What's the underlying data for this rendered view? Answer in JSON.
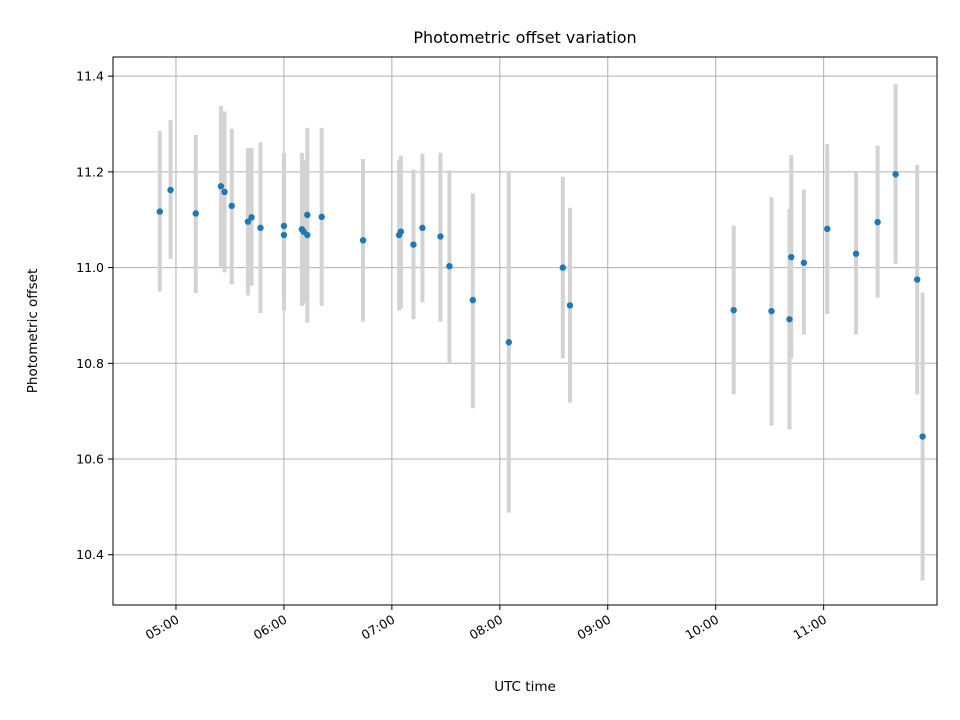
{
  "chart_data": {
    "type": "scatter",
    "title": "Photometric offset variation",
    "xlabel": "UTC time",
    "ylabel": "Photometric offset",
    "xlim": [
      "04:25",
      "12:03"
    ],
    "ylim": [
      10.295,
      11.44
    ],
    "x_ticks": [
      "05:00",
      "06:00",
      "07:00",
      "08:00",
      "09:00",
      "10:00",
      "11:00"
    ],
    "y_ticks": [
      "10.4",
      "10.6",
      "10.8",
      "11.0",
      "11.2",
      "11.4"
    ],
    "grid": true,
    "marker_color": "#1f77b4",
    "errorbar_color": "#d3d3d3",
    "points": [
      {
        "x": "04:51",
        "y": 11.117,
        "lo": 10.95,
        "hi": 11.285
      },
      {
        "x": "04:57",
        "y": 11.162,
        "lo": 11.018,
        "hi": 11.308
      },
      {
        "x": "05:11",
        "y": 11.113,
        "lo": 10.947,
        "hi": 11.277
      },
      {
        "x": "05:25",
        "y": 11.17,
        "lo": 11.002,
        "hi": 11.338
      },
      {
        "x": "05:27",
        "y": 11.158,
        "lo": 10.99,
        "hi": 11.326
      },
      {
        "x": "05:31",
        "y": 11.129,
        "lo": 10.965,
        "hi": 11.29
      },
      {
        "x": "05:40",
        "y": 11.096,
        "lo": 10.942,
        "hi": 11.25
      },
      {
        "x": "05:42",
        "y": 11.105,
        "lo": 10.962,
        "hi": 11.25
      },
      {
        "x": "05:47",
        "y": 11.083,
        "lo": 10.905,
        "hi": 11.262
      },
      {
        "x": "06:00",
        "y": 11.087,
        "lo": 10.935,
        "hi": 11.24
      },
      {
        "x": "06:00",
        "y": 11.068,
        "lo": 10.91,
        "hi": 11.225
      },
      {
        "x": "06:10",
        "y": 11.08,
        "lo": 10.92,
        "hi": 11.24
      },
      {
        "x": "06:11",
        "y": 11.075,
        "lo": 10.925,
        "hi": 11.225
      },
      {
        "x": "06:13",
        "y": 11.11,
        "lo": 10.93,
        "hi": 11.292
      },
      {
        "x": "06:13",
        "y": 11.068,
        "lo": 10.885,
        "hi": 11.25
      },
      {
        "x": "06:21",
        "y": 11.106,
        "lo": 10.92,
        "hi": 11.292
      },
      {
        "x": "06:44",
        "y": 11.057,
        "lo": 10.887,
        "hi": 11.227
      },
      {
        "x": "07:04",
        "y": 11.068,
        "lo": 10.91,
        "hi": 11.225
      },
      {
        "x": "07:05",
        "y": 11.075,
        "lo": 10.915,
        "hi": 11.234
      },
      {
        "x": "07:12",
        "y": 11.048,
        "lo": 10.892,
        "hi": 11.205
      },
      {
        "x": "07:17",
        "y": 11.083,
        "lo": 10.927,
        "hi": 11.238
      },
      {
        "x": "07:27",
        "y": 11.065,
        "lo": 10.887,
        "hi": 11.24
      },
      {
        "x": "07:32",
        "y": 11.003,
        "lo": 10.8,
        "hi": 11.203
      },
      {
        "x": "07:45",
        "y": 10.932,
        "lo": 10.706,
        "hi": 11.155
      },
      {
        "x": "08:05",
        "y": 10.844,
        "lo": 10.488,
        "hi": 11.202
      },
      {
        "x": "08:35",
        "y": 11.0,
        "lo": 10.81,
        "hi": 11.19
      },
      {
        "x": "08:39",
        "y": 10.921,
        "lo": 10.718,
        "hi": 11.125
      },
      {
        "x": "10:10",
        "y": 10.911,
        "lo": 10.735,
        "hi": 11.088
      },
      {
        "x": "10:31",
        "y": 10.909,
        "lo": 10.67,
        "hi": 11.147
      },
      {
        "x": "10:41",
        "y": 10.892,
        "lo": 10.662,
        "hi": 11.122
      },
      {
        "x": "10:42",
        "y": 11.022,
        "lo": 10.81,
        "hi": 11.235
      },
      {
        "x": "10:49",
        "y": 11.01,
        "lo": 10.86,
        "hi": 11.163
      },
      {
        "x": "11:02",
        "y": 11.081,
        "lo": 10.903,
        "hi": 11.258
      },
      {
        "x": "11:18",
        "y": 11.029,
        "lo": 10.86,
        "hi": 11.2
      },
      {
        "x": "11:30",
        "y": 11.095,
        "lo": 10.937,
        "hi": 11.255
      },
      {
        "x": "11:40",
        "y": 11.195,
        "lo": 11.008,
        "hi": 11.383
      },
      {
        "x": "11:52",
        "y": 10.975,
        "lo": 10.735,
        "hi": 11.215
      },
      {
        "x": "11:55",
        "y": 10.647,
        "lo": 10.346,
        "hi": 10.948
      }
    ]
  }
}
